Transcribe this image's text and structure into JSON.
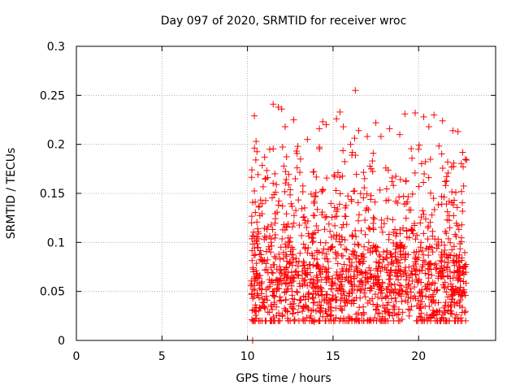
{
  "chart_data": {
    "type": "scatter",
    "title": "Day 097 of 2020, SRMTID for receiver wroc",
    "xlabel": "GPS time / hours",
    "ylabel": "SRMTID / TECUs",
    "xlim": [
      0,
      24.5
    ],
    "ylim": [
      0,
      0.3
    ],
    "x_ticks": [
      0,
      5,
      10,
      15,
      20
    ],
    "x_tick_labels": [
      "0",
      "5",
      "10",
      "15",
      "20"
    ],
    "y_ticks": [
      0,
      0.05,
      0.1,
      0.15,
      0.2,
      0.25,
      0.3
    ],
    "y_tick_labels": [
      "0",
      "0.05",
      "0.1",
      "0.15",
      "0.2",
      "0.25",
      "0.3"
    ],
    "grid": true,
    "marker": "+",
    "color": "#ff0000",
    "series": [
      {
        "name": "SRMTID",
        "x_range": [
          10.2,
          22.8
        ],
        "points": [
          [
            10.3,
            0.0
          ],
          [
            10.4,
            0.229
          ],
          [
            10.5,
            0.203
          ],
          [
            10.6,
            0.046
          ],
          [
            10.8,
            0.058
          ],
          [
            11.0,
            0.187
          ],
          [
            11.1,
            0.045
          ],
          [
            11.3,
            0.195
          ],
          [
            11.5,
            0.241
          ],
          [
            11.6,
            0.17
          ],
          [
            11.8,
            0.238
          ],
          [
            12.0,
            0.236
          ],
          [
            12.2,
            0.218
          ],
          [
            12.5,
            0.037
          ],
          [
            12.7,
            0.225
          ],
          [
            12.9,
            0.176
          ],
          [
            13.1,
            0.185
          ],
          [
            13.3,
            0.034
          ],
          [
            13.5,
            0.205
          ],
          [
            13.7,
            0.025
          ],
          [
            13.9,
            0.019
          ],
          [
            14.2,
            0.216
          ],
          [
            14.4,
            0.223
          ],
          [
            14.6,
            0.22
          ],
          [
            14.9,
            0.03
          ],
          [
            15.2,
            0.226
          ],
          [
            15.4,
            0.233
          ],
          [
            15.6,
            0.218
          ],
          [
            15.9,
            0.024
          ],
          [
            16.1,
            0.189
          ],
          [
            16.3,
            0.255
          ],
          [
            16.5,
            0.214
          ],
          [
            16.8,
            0.027
          ],
          [
            17.0,
            0.208
          ],
          [
            17.3,
            0.183
          ],
          [
            17.5,
            0.222
          ],
          [
            17.8,
            0.208
          ],
          [
            18.0,
            0.03
          ],
          [
            18.3,
            0.216
          ],
          [
            18.6,
            0.028
          ],
          [
            18.9,
            0.21
          ],
          [
            19.2,
            0.231
          ],
          [
            19.5,
            0.031
          ],
          [
            19.8,
            0.232
          ],
          [
            20.0,
            0.195
          ],
          [
            20.3,
            0.228
          ],
          [
            20.6,
            0.218
          ],
          [
            20.9,
            0.23
          ],
          [
            21.1,
            0.029
          ],
          [
            21.4,
            0.224
          ],
          [
            21.7,
            0.182
          ],
          [
            22.0,
            0.214
          ],
          [
            22.3,
            0.213
          ],
          [
            22.6,
            0.177
          ],
          [
            22.8,
            0.184
          ]
        ]
      }
    ]
  }
}
